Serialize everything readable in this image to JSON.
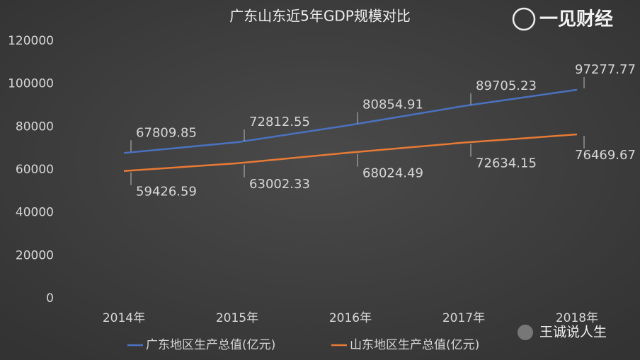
{
  "chart_data": {
    "type": "line",
    "title": "广东山东近5年GDP规模对比",
    "categories": [
      "2014年",
      "2015年",
      "2016年",
      "2017年",
      "2018年"
    ],
    "series": [
      {
        "name": "广东地区生产总值(亿元)",
        "color": "#4a72c0",
        "values": [
          67809.85,
          72812.55,
          80854.91,
          89705.23,
          97277.77
        ]
      },
      {
        "name": "山东地区生产总值(亿元)",
        "color": "#e87a35",
        "values": [
          59426.59,
          63002.33,
          68024.49,
          72634.15,
          76469.67
        ]
      }
    ],
    "ylim": [
      0,
      120000
    ],
    "yticks": [
      0,
      20000,
      40000,
      60000,
      80000,
      100000,
      120000
    ],
    "grid": false,
    "legend": "bottom",
    "watermarks": [
      "一见财经",
      "王诚说人生"
    ]
  }
}
